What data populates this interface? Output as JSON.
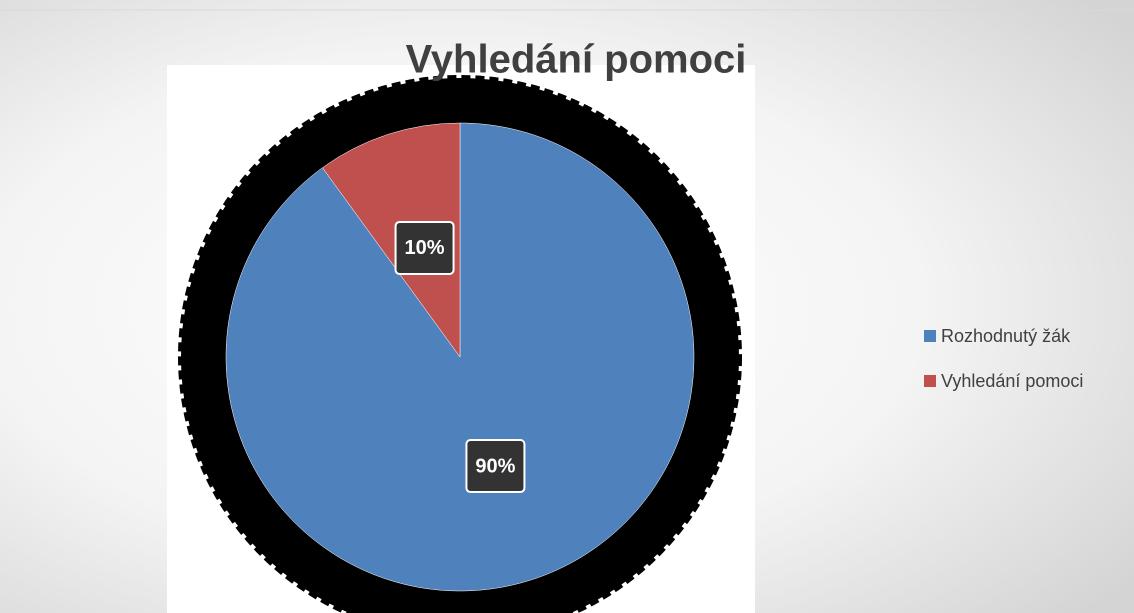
{
  "chart_data": {
    "type": "pie",
    "title": "Vyhledání pomoci",
    "categories": [
      "Rozhodnutý žák",
      "Vyhledání pomoci"
    ],
    "values": [
      90,
      10
    ],
    "value_labels": [
      "90%",
      "10%"
    ],
    "colors": [
      "#4f81bd",
      "#c0504d"
    ],
    "legend": "right"
  }
}
